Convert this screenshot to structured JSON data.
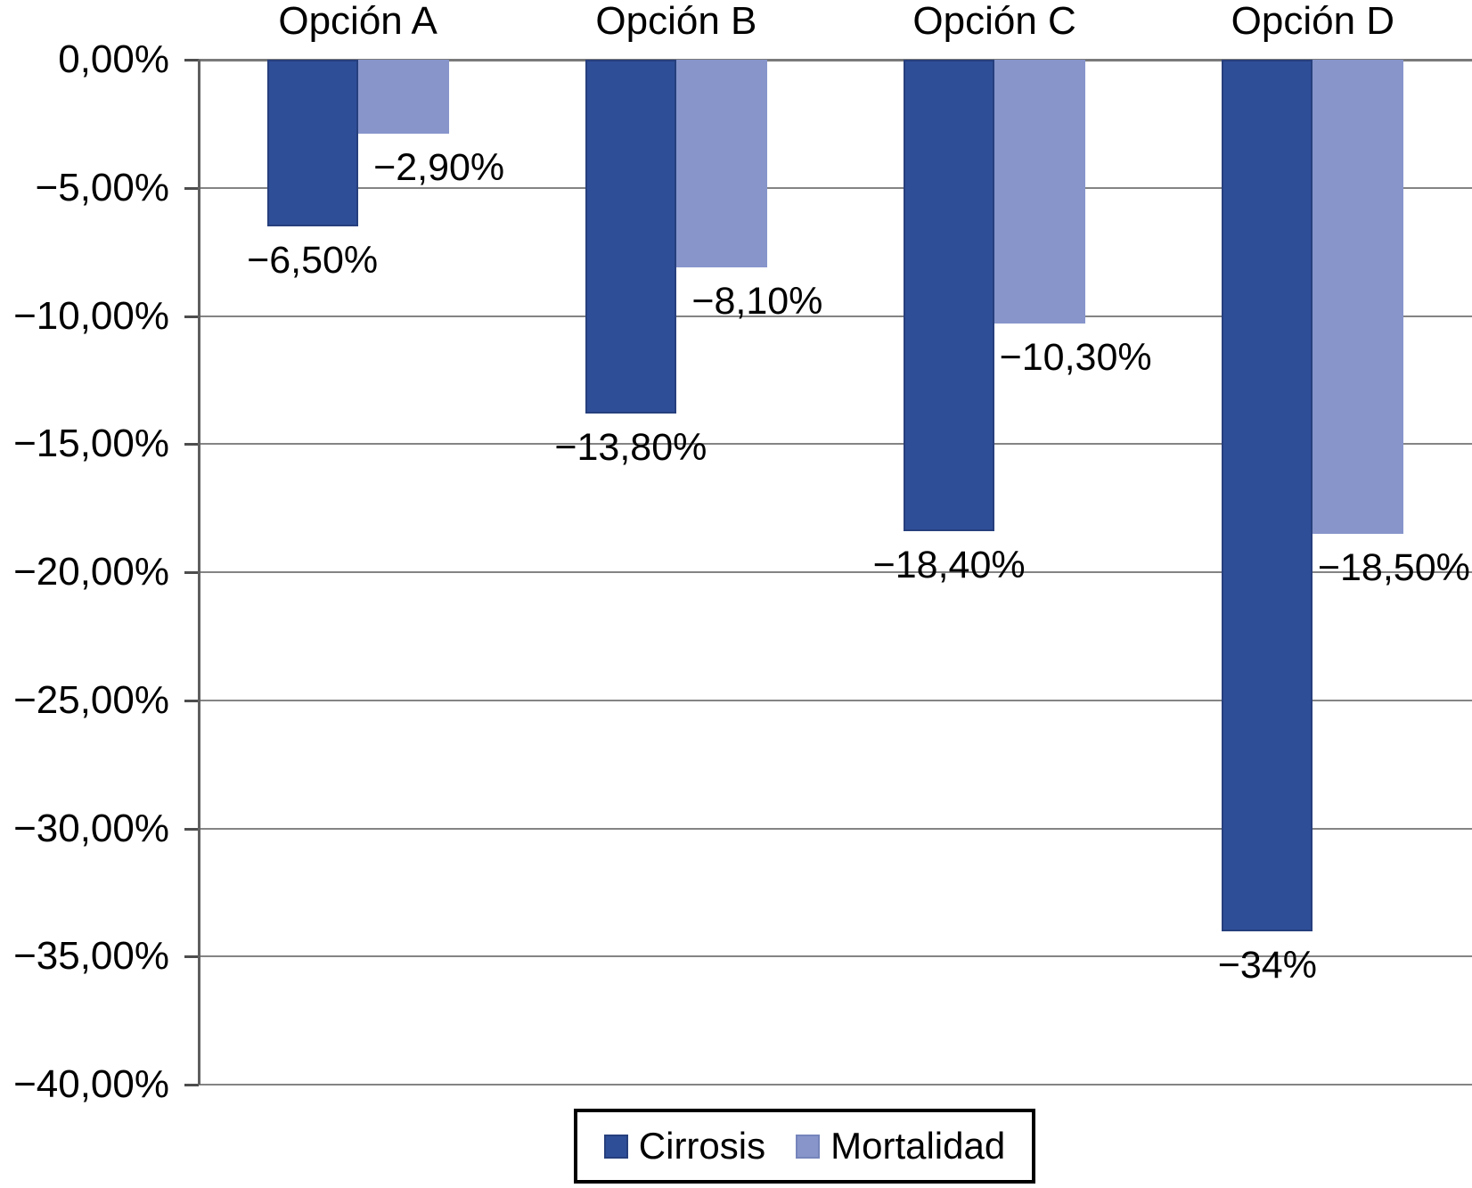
{
  "chart_data": {
    "type": "bar",
    "title": "",
    "categories": [
      "Opción A",
      "Opción B",
      "Opción C",
      "Opción D"
    ],
    "series": [
      {
        "name": "Cirrosis",
        "color": "#2F4E98",
        "border_color": "#263f7d",
        "values": [
          -6.5,
          -13.8,
          -18.4,
          -34
        ],
        "labels": [
          "−6,50%",
          "−13,80%",
          "−18,40%",
          "−34%"
        ]
      },
      {
        "name": "Mortalidad",
        "color": "#8795CB",
        "border_color": "#7685bb",
        "values": [
          -2.9,
          -8.1,
          -10.3,
          -18.5
        ],
        "labels": [
          "−2,90%",
          "−8,10%",
          "−10,30%",
          "−18,50%"
        ]
      }
    ],
    "y_axis": {
      "min": -40,
      "max": 0,
      "tick_step": 5,
      "tick_labels": [
        "0,00%",
        "−5,00%",
        "−10,00%",
        "−15,00%",
        "−20,00%",
        "−25,00%",
        "−30,00%",
        "−35,00%",
        "−40,00%"
      ]
    },
    "x_axis": {
      "labels_position": "top"
    },
    "grid": true,
    "legend": {
      "position": "bottom",
      "entries": [
        "Cirrosis",
        "Mortalidad"
      ]
    }
  }
}
